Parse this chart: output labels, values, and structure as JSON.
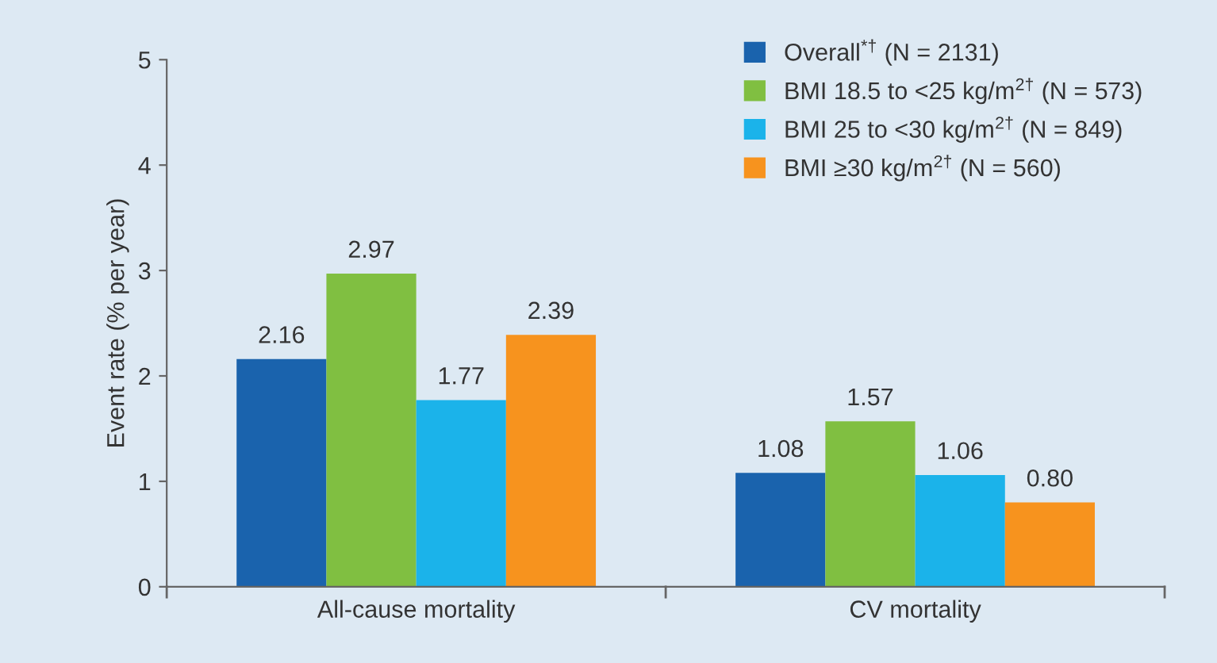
{
  "chart_data": {
    "type": "bar",
    "ylabel": "Event rate (% per year)",
    "categories": [
      "All-cause mortality",
      "CV mortality"
    ],
    "series": [
      {
        "name": "Overall$^{*†}$ (N = 2131)",
        "color": "#1a63ad",
        "values": [
          2.16,
          1.08
        ],
        "value_labels": [
          "2.16",
          "1.08"
        ]
      },
      {
        "name": "BMI 18.5 to <25 kg/m$^{2†}$ (N = 573)",
        "color": "#80bf41",
        "values": [
          2.97,
          1.57
        ],
        "value_labels": [
          "2.97",
          "1.57"
        ]
      },
      {
        "name": "BMI 25 to <30 kg/m$^{2†}$ (N = 849)",
        "color": "#1bb3ea",
        "values": [
          1.77,
          1.06
        ],
        "value_labels": [
          "1.77",
          "1.06"
        ]
      },
      {
        "name": "BMI ≥30 kg/m$^{2†}$ (N = 560)",
        "color": "#f7931e",
        "values": [
          2.39,
          0.8
        ],
        "value_labels": [
          "2.39",
          "0.80"
        ]
      }
    ],
    "ylim": [
      0,
      5
    ],
    "yticks": [
      0,
      1,
      2,
      3,
      4,
      5
    ],
    "grid": false,
    "legend": "top right"
  }
}
